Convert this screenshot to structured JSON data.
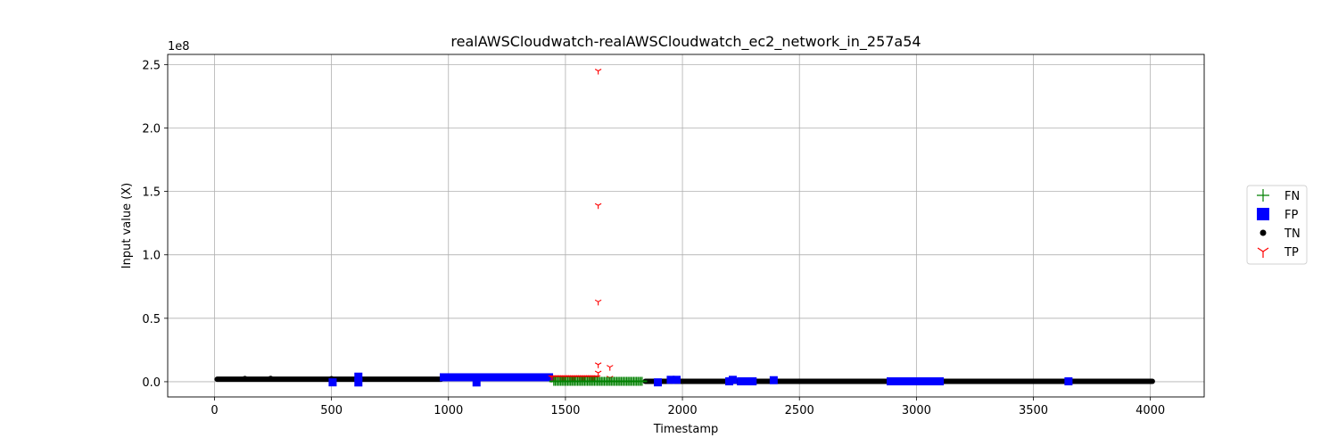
{
  "chart_data": {
    "type": "scatter",
    "title": "realAWSCloudwatch-realAWSCloudwatch_ec2_network_in_257a54",
    "xlabel": "Timestamp",
    "ylabel": "Input value (X)",
    "y_scale_label": "1e8",
    "xlim": [
      -200,
      4230
    ],
    "ylim": [
      -12000000,
      258000000
    ],
    "y_multiplier": 100000000,
    "grid": true,
    "legend_placement": "right",
    "x_ticks": [
      0,
      500,
      1000,
      1500,
      2000,
      2500,
      3000,
      3500,
      4000
    ],
    "x_tick_labels": [
      "0",
      "500",
      "1000",
      "1500",
      "2000",
      "2500",
      "3000",
      "3500",
      "4000"
    ],
    "y_ticks": [
      0,
      50000000,
      100000000,
      150000000,
      200000000,
      250000000
    ],
    "y_tick_labels": [
      "0.0",
      "0.5",
      "1.0",
      "1.5",
      "2.0",
      "2.5"
    ],
    "legend": [
      {
        "label": "FN",
        "marker": "plus",
        "color": "#008000"
      },
      {
        "label": "FP",
        "marker": "square",
        "color": "#0000ff"
      },
      {
        "label": "TN",
        "marker": "circle",
        "color": "#000000"
      },
      {
        "label": "TP",
        "marker": "tri_down",
        "color": "#ff0000"
      }
    ],
    "series": [
      {
        "name": "TN",
        "marker": "circle",
        "color": "#000000",
        "segments": [
          {
            "x_start": 0,
            "x_end": 980,
            "y": 2000000
          },
          {
            "x_start": 1430,
            "x_end": 1450,
            "y": 1500000
          },
          {
            "x_start": 1830,
            "x_end": 4020,
            "y": 300000
          }
        ],
        "points": [
          {
            "x": 130,
            "y": 2500000
          },
          {
            "x": 240,
            "y": 2600000
          },
          {
            "x": 500,
            "y": 2400000
          },
          {
            "x": 1120,
            "y": 1200000
          }
        ]
      },
      {
        "name": "FP",
        "marker": "square",
        "color": "#0000ff",
        "segments": [
          {
            "x_start": 980,
            "x_end": 1430,
            "y": 3500000
          },
          {
            "x_start": 2890,
            "x_end": 3100,
            "y": 300000
          }
        ],
        "points": [
          {
            "x": 505,
            "y": -500000
          },
          {
            "x": 615,
            "y": 4000000
          },
          {
            "x": 615,
            "y": -600000
          },
          {
            "x": 1120,
            "y": -600000
          },
          {
            "x": 1895,
            "y": -500000
          },
          {
            "x": 1950,
            "y": 1500000
          },
          {
            "x": 1975,
            "y": 1500000
          },
          {
            "x": 2200,
            "y": 300000
          },
          {
            "x": 2215,
            "y": 1500000
          },
          {
            "x": 2250,
            "y": 300000
          },
          {
            "x": 2280,
            "y": 300000
          },
          {
            "x": 2300,
            "y": 300000
          },
          {
            "x": 2390,
            "y": 1200000
          },
          {
            "x": 3650,
            "y": 300000
          }
        ]
      },
      {
        "name": "TP",
        "marker": "tri_down",
        "color": "#ff0000",
        "segments": [
          {
            "x_start": 1440,
            "x_end": 1640,
            "y": 3500000
          }
        ],
        "points": [
          {
            "x": 1640,
            "y": 245000000
          },
          {
            "x": 1640,
            "y": 139000000
          },
          {
            "x": 1640,
            "y": 63000000
          },
          {
            "x": 1640,
            "y": 13500000
          },
          {
            "x": 1640,
            "y": 7000000
          },
          {
            "x": 1690,
            "y": 11500000
          },
          {
            "x": 1690,
            "y": 3000000
          }
        ]
      },
      {
        "name": "FN",
        "marker": "plus",
        "color": "#008000",
        "segments": [
          {
            "x_start": 1450,
            "x_end": 1830,
            "y": 300000
          }
        ],
        "points": []
      }
    ]
  }
}
